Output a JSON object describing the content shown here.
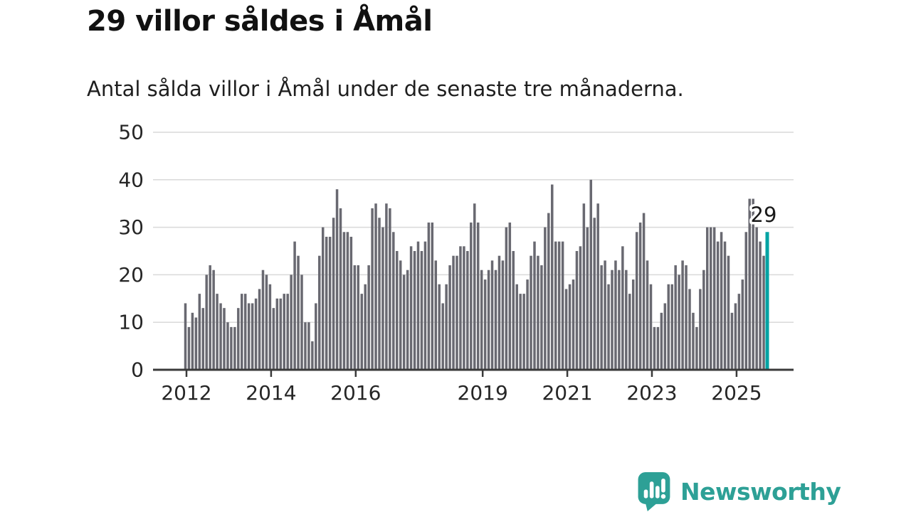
{
  "header": {
    "title": "29 villor såldes i Åmål",
    "subtitle": "Antal sålda villor i Åmål under de senaste tre månaderna."
  },
  "chart_data": {
    "type": "bar",
    "title": "29 villor såldes i Åmål",
    "subtitle": "Antal sålda villor i Åmål under de senaste tre månaderna.",
    "start_year": 2012,
    "values": [
      14,
      9,
      12,
      11,
      16,
      13,
      20,
      22,
      21,
      16,
      14,
      13,
      10,
      9,
      9,
      13,
      16,
      16,
      14,
      14,
      15,
      17,
      21,
      20,
      18,
      13,
      15,
      15,
      16,
      16,
      20,
      27,
      24,
      20,
      10,
      10,
      6,
      14,
      24,
      30,
      28,
      28,
      32,
      38,
      34,
      29,
      29,
      28,
      22,
      22,
      16,
      18,
      22,
      34,
      35,
      32,
      30,
      35,
      34,
      29,
      25,
      23,
      20,
      21,
      26,
      25,
      27,
      25,
      27,
      31,
      31,
      23,
      18,
      14,
      18,
      22,
      24,
      24,
      26,
      26,
      25,
      31,
      35,
      31,
      21,
      19,
      21,
      23,
      21,
      24,
      23,
      30,
      31,
      25,
      18,
      16,
      16,
      19,
      24,
      27,
      24,
      22,
      30,
      33,
      39,
      27,
      27,
      27,
      17,
      18,
      19,
      25,
      26,
      35,
      30,
      40,
      32,
      35,
      22,
      23,
      18,
      21,
      23,
      21,
      26,
      21,
      16,
      19,
      29,
      31,
      33,
      23,
      18,
      9,
      9,
      12,
      14,
      18,
      18,
      22,
      20,
      23,
      22,
      17,
      12,
      9,
      17,
      21,
      30,
      30,
      30,
      27,
      29,
      27,
      24,
      12,
      14,
      16,
      19,
      29,
      36,
      36,
      30,
      27,
      24,
      29
    ],
    "highlight_last_bar": true,
    "annotation": {
      "text": "29"
    },
    "yticks": [
      0,
      10,
      20,
      30,
      40,
      50
    ],
    "ylim": [
      0,
      50
    ],
    "xticks": [
      {
        "label": "2012",
        "month_index": 0
      },
      {
        "label": "2014",
        "month_index": 24
      },
      {
        "label": "2016",
        "month_index": 48
      },
      {
        "label": "2019",
        "month_index": 84
      },
      {
        "label": "2021",
        "month_index": 108
      },
      {
        "label": "2023",
        "month_index": 132
      },
      {
        "label": "2025",
        "month_index": 156
      }
    ],
    "grid": true,
    "legend": false,
    "colors": {
      "bar": "#696971",
      "highlight": "#00a3a3",
      "gridline": "#d9d9d9",
      "axis": "#3a3a3a",
      "tick_label": "#262626",
      "annotation_text": "#1a1a1a"
    }
  },
  "footer": {
    "brand": "Newsworthy",
    "logo_icon": "speech-bubble-chart-icon",
    "brand_color": "#2da096"
  }
}
